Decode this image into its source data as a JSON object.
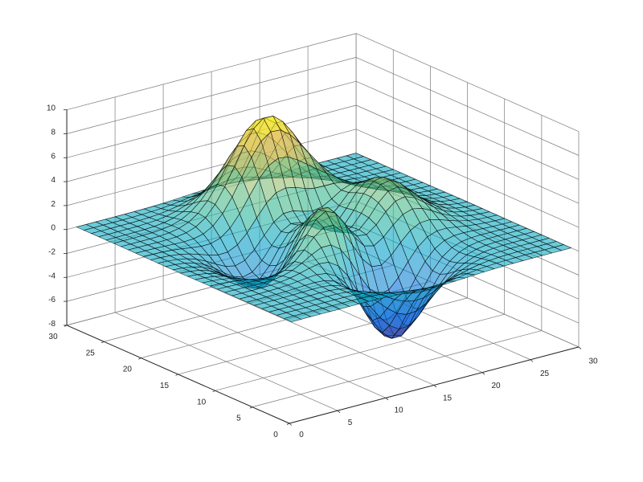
{
  "chart_data": {
    "type": "surface",
    "title": "",
    "xlabel": "",
    "ylabel": "",
    "zlabel": "",
    "surface": {
      "function": "peaks",
      "grid_size": 30,
      "x": [
        1,
        30
      ],
      "y": [
        1,
        30
      ]
    },
    "xlim": [
      0,
      30
    ],
    "ylim": [
      0,
      30
    ],
    "zlim": [
      -8,
      10
    ],
    "x_ticks": [
      "0",
      "5",
      "10",
      "15",
      "20",
      "25",
      "30"
    ],
    "y_ticks": [
      "0",
      "5",
      "10",
      "15",
      "20",
      "25",
      "30"
    ],
    "z_ticks": [
      "-8",
      "-6",
      "-4",
      "-2",
      "0",
      "2",
      "4",
      "6",
      "8",
      "10"
    ],
    "grid": true,
    "colormap": "parula",
    "edge_color": "#000000",
    "face_alpha": 0.6
  }
}
